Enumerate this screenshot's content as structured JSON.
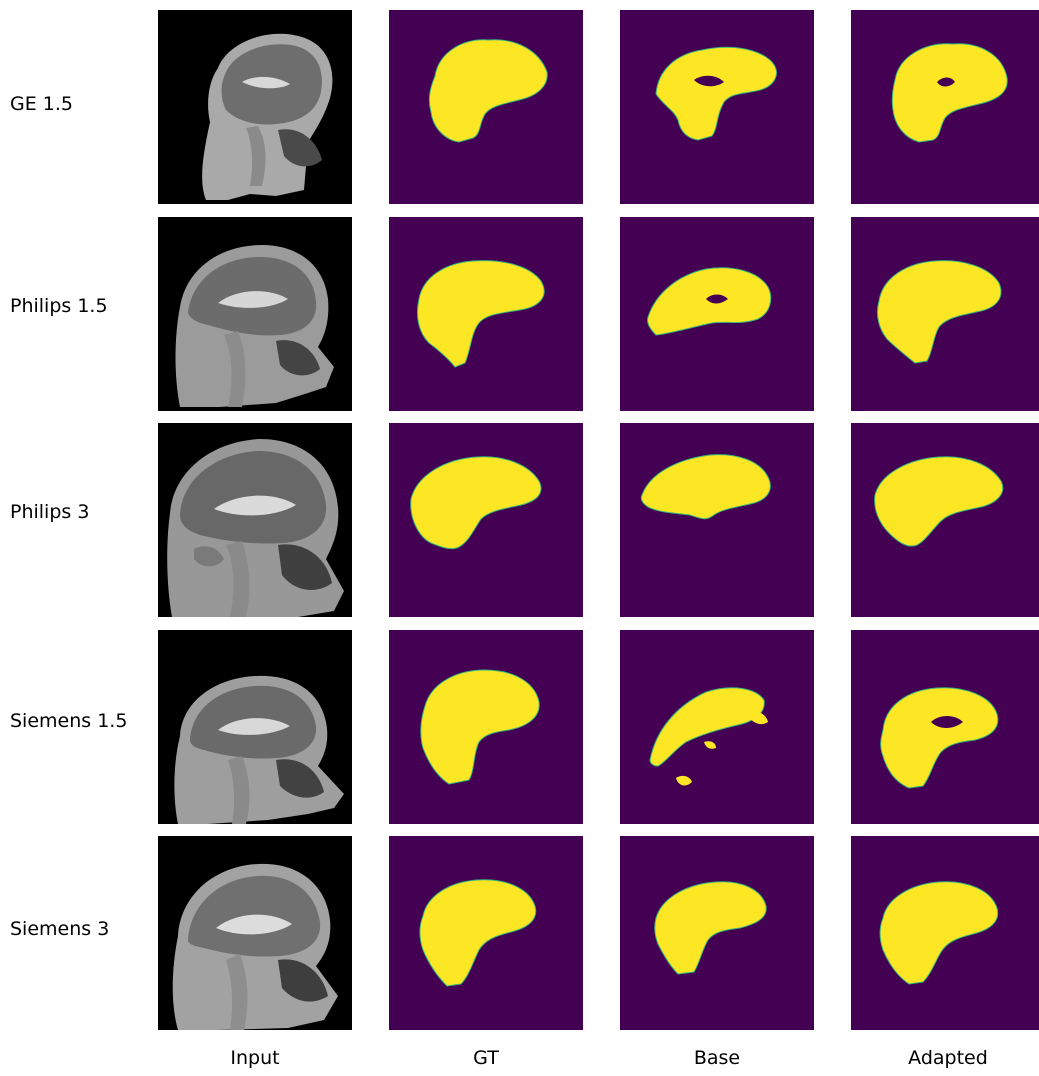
{
  "figure": {
    "columns": [
      "Input",
      "GT",
      "Base",
      "Adapted"
    ],
    "rows": [
      {
        "label": "GE 1.5"
      },
      {
        "label": "Philips 1.5"
      },
      {
        "label": "Philips 3"
      },
      {
        "label": "Siemens 1.5"
      },
      {
        "label": "Siemens 3"
      }
    ],
    "colors": {
      "mri_background": "#000000",
      "mask_background": "#440154",
      "mask_foreground": "#fde725",
      "mask_edge": "#35b779"
    }
  }
}
